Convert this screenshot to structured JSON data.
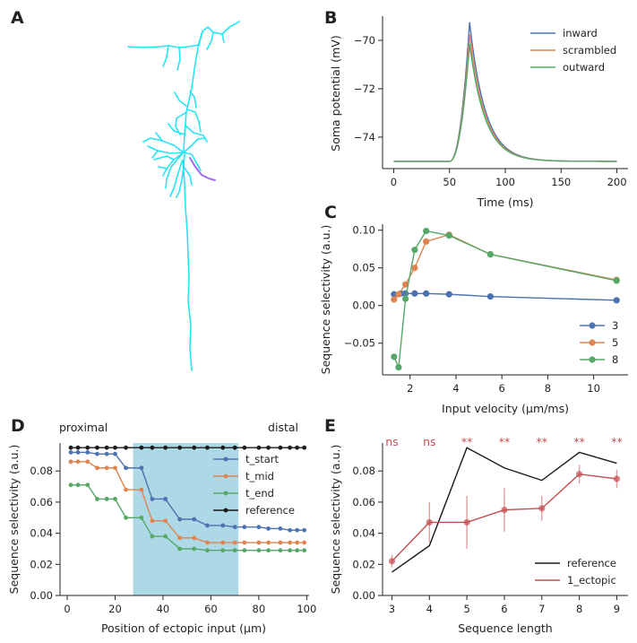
{
  "panels": {
    "A": "A",
    "B": "B",
    "C": "C",
    "D": "D",
    "E": "E"
  },
  "colors": {
    "blue": "#4c72b0",
    "orange": "#dd8452",
    "green": "#55a868",
    "red": "#c44e52",
    "black": "#1a1a1a",
    "cyan": "#26e3f5",
    "purple": "#a06bf0",
    "shade": "#add8e6"
  },
  "chart_data": [
    {
      "id": "B",
      "type": "line",
      "xlabel": "Time (ms)",
      "ylabel": "Soma potential (mV)",
      "xlim": [
        -10,
        210
      ],
      "ylim": [
        -75.3,
        -69.0
      ],
      "xticks": [
        0,
        50,
        100,
        150,
        200
      ],
      "yticks": [
        -74,
        -72,
        -70
      ],
      "xtick_labels": [
        "0",
        "50",
        "100",
        "150",
        "200"
      ],
      "ytick_labels": [
        "−74",
        "−72",
        "−70"
      ],
      "legend": "top-right",
      "series": [
        {
          "name": "inward",
          "color": "#4c72b0",
          "peak": -69.25,
          "baseline": -75.0,
          "onset": 50,
          "peak_t": 68
        },
        {
          "name": "scrambled",
          "color": "#dd8452",
          "peak": -69.75,
          "baseline": -75.0,
          "onset": 50,
          "peak_t": 68
        },
        {
          "name": "outward",
          "color": "#55a868",
          "peak": -70.15,
          "baseline": -75.0,
          "onset": 50,
          "peak_t": 68
        }
      ]
    },
    {
      "id": "C",
      "type": "line",
      "xlabel": "Input velocity (µm/ms)",
      "ylabel": "Sequence selectivity (a.u.)",
      "xlim": [
        0.8,
        11.5
      ],
      "ylim": [
        -0.092,
        0.108
      ],
      "xticks": [
        2,
        4,
        6,
        8,
        10
      ],
      "yticks": [
        -0.05,
        0.0,
        0.05,
        0.1
      ],
      "xtick_labels": [
        "2",
        "4",
        "6",
        "8",
        "10"
      ],
      "ytick_labels": [
        "−0.05",
        "0.00",
        "0.05",
        "0.10"
      ],
      "legend": "bottom-right",
      "series": [
        {
          "name": "3",
          "color": "#4c72b0",
          "x": [
            1.3,
            1.6,
            1.8,
            2.2,
            2.7,
            3.7,
            5.5,
            11.0
          ],
          "y": [
            0.015,
            0.016,
            0.016,
            0.016,
            0.016,
            0.015,
            0.012,
            0.007
          ]
        },
        {
          "name": "5",
          "color": "#dd8452",
          "x": [
            1.3,
            1.5,
            1.8,
            2.2,
            2.7,
            3.7,
            5.5,
            11.0
          ],
          "y": [
            0.008,
            0.015,
            0.028,
            0.05,
            0.085,
            0.094,
            0.068,
            0.034
          ]
        },
        {
          "name": "8",
          "color": "#55a868",
          "x": [
            1.3,
            1.5,
            1.8,
            2.2,
            2.7,
            3.7,
            5.5,
            11.0
          ],
          "y": [
            -0.068,
            -0.082,
            0.009,
            0.074,
            0.099,
            0.093,
            0.068,
            0.033
          ]
        }
      ]
    },
    {
      "id": "D",
      "type": "line",
      "xlabel": "Position of ectopic input (µm)",
      "ylabel": "Sequence selectivity (a.u.)",
      "xlim": [
        -3,
        101
      ],
      "ylim": [
        0.0,
        0.098
      ],
      "xticks": [
        0,
        20,
        40,
        60,
        80,
        100
      ],
      "yticks": [
        0.0,
        0.02,
        0.04,
        0.06,
        0.08
      ],
      "xtick_labels": [
        "0",
        "20",
        "40",
        "60",
        "80",
        "100"
      ],
      "ytick_labels": [
        "0.00",
        "0.02",
        "0.04",
        "0.06",
        "0.08"
      ],
      "shaded_x": [
        27.5,
        71.5
      ],
      "annotations": [
        "proximal",
        "distal"
      ],
      "legend": "top-right",
      "x": [
        1.5,
        4.5,
        8.5,
        12.5,
        16.5,
        20,
        24.5,
        31,
        35.5,
        41,
        47,
        53,
        58.5,
        65,
        70,
        74,
        80,
        84,
        89,
        93,
        96,
        99
      ],
      "series": [
        {
          "name": "t_start",
          "color": "#4c72b0",
          "y": [
            0.092,
            0.092,
            0.092,
            0.091,
            0.091,
            0.091,
            0.082,
            0.082,
            0.062,
            0.062,
            0.049,
            0.049,
            0.045,
            0.045,
            0.044,
            0.044,
            0.044,
            0.043,
            0.043,
            0.042,
            0.042,
            0.042
          ]
        },
        {
          "name": "t_mid",
          "color": "#dd8452",
          "y": [
            0.086,
            0.086,
            0.086,
            0.082,
            0.082,
            0.082,
            0.068,
            0.068,
            0.048,
            0.048,
            0.037,
            0.037,
            0.034,
            0.034,
            0.034,
            0.034,
            0.034,
            0.034,
            0.034,
            0.034,
            0.034,
            0.034
          ]
        },
        {
          "name": "t_end",
          "color": "#55a868",
          "y": [
            0.071,
            0.071,
            0.071,
            0.062,
            0.062,
            0.062,
            0.05,
            0.05,
            0.038,
            0.038,
            0.03,
            0.03,
            0.029,
            0.029,
            0.029,
            0.029,
            0.029,
            0.029,
            0.029,
            0.029,
            0.029,
            0.029
          ]
        },
        {
          "name": "reference",
          "color": "#1a1a1a",
          "y": [
            0.095,
            0.095,
            0.095,
            0.095,
            0.095,
            0.095,
            0.095,
            0.095,
            0.095,
            0.095,
            0.095,
            0.095,
            0.095,
            0.095,
            0.095,
            0.095,
            0.095,
            0.095,
            0.095,
            0.095,
            0.095,
            0.095
          ]
        }
      ]
    },
    {
      "id": "E",
      "type": "line",
      "xlabel": "Sequence length",
      "ylabel": "Sequence selectivity (a.u.)",
      "xlim": [
        2.75,
        9.3
      ],
      "ylim": [
        0.0,
        0.098
      ],
      "xticks": [
        3,
        4,
        5,
        6,
        7,
        8,
        9
      ],
      "yticks": [
        0.0,
        0.02,
        0.04,
        0.06,
        0.08
      ],
      "xtick_labels": [
        "3",
        "4",
        "5",
        "6",
        "7",
        "8",
        "9"
      ],
      "ytick_labels": [
        "0.00",
        "0.02",
        "0.04",
        "0.06",
        "0.08"
      ],
      "legend": "bottom-right",
      "significance": [
        "ns",
        "ns",
        "**",
        "**",
        "**",
        "**",
        "**"
      ],
      "series": [
        {
          "name": "reference",
          "color": "#1a1a1a",
          "x": [
            3,
            4,
            5,
            6,
            7,
            8,
            9
          ],
          "y": [
            0.015,
            0.032,
            0.095,
            0.082,
            0.074,
            0.092,
            0.085
          ]
        },
        {
          "name": "1_ectopic",
          "color": "#c44e52",
          "x": [
            3,
            4,
            5,
            6,
            7,
            8,
            9
          ],
          "y": [
            0.022,
            0.047,
            0.047,
            0.055,
            0.056,
            0.078,
            0.075
          ],
          "err": [
            0.004,
            0.013,
            0.017,
            0.014,
            0.008,
            0.006,
            0.006
          ]
        }
      ]
    }
  ]
}
